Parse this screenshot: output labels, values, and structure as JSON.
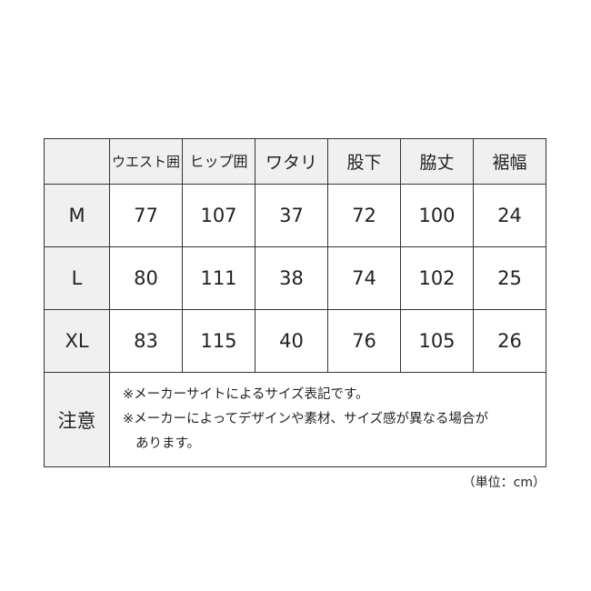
{
  "table": {
    "headers": [
      "",
      "ウエスト囲",
      "ヒップ囲",
      "ワタリ",
      "股下",
      "脇丈",
      "裾幅"
    ],
    "rows": [
      {
        "size": "M",
        "values": [
          "77",
          "107",
          "37",
          "72",
          "100",
          "24"
        ]
      },
      {
        "size": "L",
        "values": [
          "80",
          "111",
          "38",
          "74",
          "102",
          "25"
        ]
      },
      {
        "size": "XL",
        "values": [
          "83",
          "115",
          "40",
          "76",
          "105",
          "26"
        ]
      }
    ],
    "note_label": "注意",
    "notes": [
      "※メーカーサイトによるサイズ表記です。",
      "※メーカーによってデザインや素材、サイズ感が異なる場合が",
      "あります。"
    ]
  },
  "unit": "（単位：cm）",
  "colors": {
    "header_bg": "#f0f0f0",
    "border": "#333333"
  }
}
